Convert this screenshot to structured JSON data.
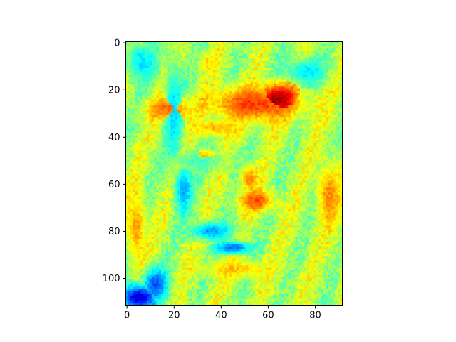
{
  "chart_data": {
    "type": "heatmap",
    "title": "",
    "xlabel": "",
    "ylabel": "",
    "colormap": "jet",
    "grid": false,
    "image_rows": 112,
    "image_cols": 92,
    "xlim": [
      -0.5,
      91.5
    ],
    "ylim": [
      111.5,
      -0.5
    ],
    "x_ticks": [
      0,
      20,
      40,
      60,
      80
    ],
    "y_ticks": [
      0,
      20,
      40,
      60,
      80,
      100
    ],
    "x_tick_labels": [
      "0",
      "20",
      "40",
      "60",
      "80"
    ],
    "y_tick_labels": [
      "0",
      "20",
      "40",
      "60",
      "80",
      "100"
    ],
    "regions": [
      {
        "kind": "ellipse",
        "cx": 55,
        "cy": 26,
        "rx": 22,
        "ry": 8,
        "value": 0.82
      },
      {
        "kind": "ellipse",
        "cx": 64,
        "cy": 24,
        "rx": 10,
        "ry": 7,
        "value": 0.98
      },
      {
        "kind": "ellipse",
        "cx": 18,
        "cy": 28,
        "rx": 10,
        "ry": 5,
        "value": 0.78
      },
      {
        "kind": "ellipse",
        "cx": 38,
        "cy": 36,
        "rx": 12,
        "ry": 4,
        "value": 0.7
      },
      {
        "kind": "ellipse",
        "cx": 55,
        "cy": 67,
        "rx": 8,
        "ry": 5,
        "value": 0.8
      },
      {
        "kind": "ellipse",
        "cx": 52,
        "cy": 58,
        "rx": 4,
        "ry": 6,
        "value": 0.74
      },
      {
        "kind": "ellipse",
        "cx": 33,
        "cy": 48,
        "rx": 6,
        "ry": 3,
        "value": 0.7
      },
      {
        "kind": "ellipse",
        "cx": 86,
        "cy": 65,
        "rx": 5,
        "ry": 15,
        "value": 0.74
      },
      {
        "kind": "ellipse",
        "cx": 35,
        "cy": 8,
        "rx": 5,
        "ry": 4,
        "value": 0.66
      },
      {
        "kind": "ellipse",
        "cx": 30,
        "cy": 50,
        "rx": 15,
        "ry": 5,
        "value": 0.45
      },
      {
        "kind": "ellipse",
        "cx": 24,
        "cy": 62,
        "rx": 4,
        "ry": 12,
        "value": 0.3
      },
      {
        "kind": "ellipse",
        "cx": 20,
        "cy": 30,
        "rx": 4,
        "ry": 25,
        "value": 0.35
      },
      {
        "kind": "ellipse",
        "cx": 36,
        "cy": 80,
        "rx": 10,
        "ry": 4,
        "value": 0.28
      },
      {
        "kind": "ellipse",
        "cx": 45,
        "cy": 87,
        "rx": 8,
        "ry": 3,
        "value": 0.22
      },
      {
        "kind": "ellipse",
        "cx": 6,
        "cy": 8,
        "rx": 7,
        "ry": 9,
        "value": 0.35
      },
      {
        "kind": "ellipse",
        "cx": 76,
        "cy": 12,
        "rx": 9,
        "ry": 6,
        "value": 0.35
      },
      {
        "kind": "ellipse",
        "cx": 5,
        "cy": 108,
        "rx": 9,
        "ry": 6,
        "value": 0.08
      },
      {
        "kind": "ellipse",
        "cx": 12,
        "cy": 103,
        "rx": 6,
        "ry": 8,
        "value": 0.2
      },
      {
        "kind": "ellipse",
        "cx": 4,
        "cy": 78,
        "rx": 4,
        "ry": 16,
        "value": 0.72
      },
      {
        "kind": "ellipse",
        "cx": 46,
        "cy": 96,
        "rx": 14,
        "ry": 4,
        "value": 0.68
      }
    ],
    "base_value": 0.55
  }
}
